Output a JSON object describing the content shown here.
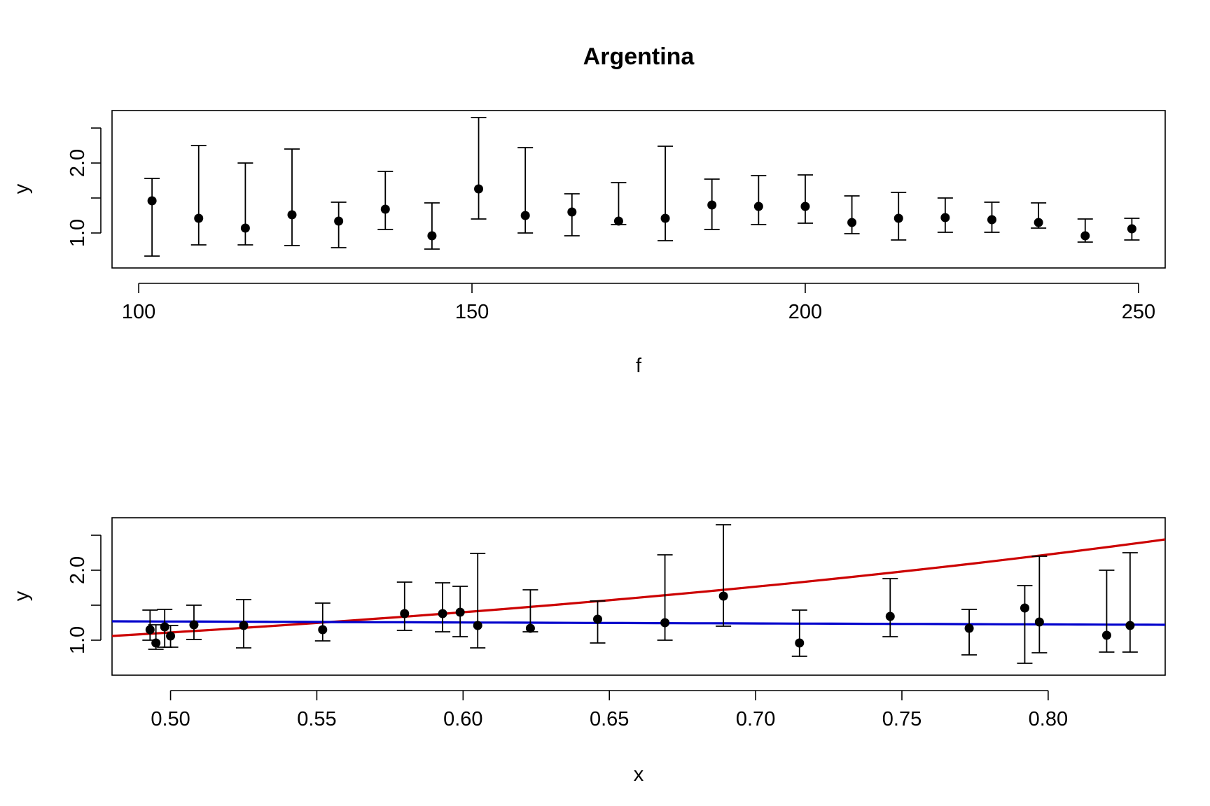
{
  "chart_data": [
    {
      "type": "scatter",
      "title": "Argentina",
      "xlabel": "f",
      "ylabel": "y",
      "xlim": [
        96,
        254
      ],
      "ylim": [
        0.5,
        2.75
      ],
      "xticks": [
        100,
        150,
        200,
        250
      ],
      "xtick_labels": [
        "100",
        "150",
        "200",
        "250"
      ],
      "yticks": [
        1.0,
        2.0
      ],
      "ytick_labels": [
        "1.0",
        "2.0"
      ],
      "grid": false,
      "colors": {
        "points": "#000000",
        "error_bars": "#000000"
      },
      "points": [
        {
          "x": 102,
          "y": 1.46,
          "lo": 0.67,
          "hi": 1.78
        },
        {
          "x": 109,
          "y": 1.21,
          "lo": 0.83,
          "hi": 2.25
        },
        {
          "x": 116,
          "y": 1.07,
          "lo": 0.83,
          "hi": 2.0
        },
        {
          "x": 123,
          "y": 1.26,
          "lo": 0.82,
          "hi": 2.2
        },
        {
          "x": 130,
          "y": 1.17,
          "lo": 0.79,
          "hi": 1.44
        },
        {
          "x": 137,
          "y": 1.34,
          "lo": 1.05,
          "hi": 1.88
        },
        {
          "x": 144,
          "y": 0.96,
          "lo": 0.77,
          "hi": 1.43
        },
        {
          "x": 151,
          "y": 1.63,
          "lo": 1.2,
          "hi": 2.65
        },
        {
          "x": 158,
          "y": 1.25,
          "lo": 1.0,
          "hi": 2.22
        },
        {
          "x": 165,
          "y": 1.3,
          "lo": 0.96,
          "hi": 1.56
        },
        {
          "x": 172,
          "y": 1.17,
          "lo": 1.12,
          "hi": 1.72
        },
        {
          "x": 179,
          "y": 1.21,
          "lo": 0.89,
          "hi": 2.24
        },
        {
          "x": 186,
          "y": 1.4,
          "lo": 1.05,
          "hi": 1.77
        },
        {
          "x": 193,
          "y": 1.38,
          "lo": 1.12,
          "hi": 1.82
        },
        {
          "x": 200,
          "y": 1.38,
          "lo": 1.14,
          "hi": 1.83
        },
        {
          "x": 207,
          "y": 1.15,
          "lo": 0.99,
          "hi": 1.53
        },
        {
          "x": 214,
          "y": 1.21,
          "lo": 0.9,
          "hi": 1.58
        },
        {
          "x": 221,
          "y": 1.22,
          "lo": 1.01,
          "hi": 1.5
        },
        {
          "x": 228,
          "y": 1.19,
          "lo": 1.01,
          "hi": 1.44
        },
        {
          "x": 235,
          "y": 1.15,
          "lo": 1.07,
          "hi": 1.43
        },
        {
          "x": 242,
          "y": 0.96,
          "lo": 0.87,
          "hi": 1.2
        },
        {
          "x": 249,
          "y": 1.06,
          "lo": 0.9,
          "hi": 1.21
        }
      ]
    },
    {
      "type": "scatter",
      "title": "",
      "xlabel": "x",
      "ylabel": "y",
      "xlim": [
        0.48,
        0.84
      ],
      "ylim": [
        0.5,
        2.75
      ],
      "xticks": [
        0.5,
        0.55,
        0.6,
        0.65,
        0.7,
        0.75,
        0.8
      ],
      "xtick_labels": [
        "0.50",
        "0.55",
        "0.60",
        "0.65",
        "0.70",
        "0.75",
        "0.80"
      ],
      "yticks": [
        1.0,
        2.0
      ],
      "ytick_labels": [
        "1.0",
        "2.0"
      ],
      "grid": false,
      "colors": {
        "points": "#000000",
        "error_bars": "#000000"
      },
      "points": [
        {
          "x": 0.493,
          "y": 1.15,
          "lo": 1.0,
          "hi": 1.43
        },
        {
          "x": 0.495,
          "y": 0.96,
          "lo": 0.87,
          "hi": 1.22
        },
        {
          "x": 0.498,
          "y": 1.19,
          "lo": 0.9,
          "hi": 1.44
        },
        {
          "x": 0.5,
          "y": 1.06,
          "lo": 0.9,
          "hi": 1.21
        },
        {
          "x": 0.508,
          "y": 1.22,
          "lo": 1.01,
          "hi": 1.5
        },
        {
          "x": 0.525,
          "y": 1.21,
          "lo": 0.89,
          "hi": 1.58
        },
        {
          "x": 0.552,
          "y": 1.15,
          "lo": 0.99,
          "hi": 1.53
        },
        {
          "x": 0.58,
          "y": 1.38,
          "lo": 1.14,
          "hi": 1.83
        },
        {
          "x": 0.593,
          "y": 1.38,
          "lo": 1.12,
          "hi": 1.82
        },
        {
          "x": 0.599,
          "y": 1.4,
          "lo": 1.05,
          "hi": 1.77
        },
        {
          "x": 0.605,
          "y": 1.21,
          "lo": 0.89,
          "hi": 2.24
        },
        {
          "x": 0.623,
          "y": 1.17,
          "lo": 1.12,
          "hi": 1.72
        },
        {
          "x": 0.646,
          "y": 1.3,
          "lo": 0.96,
          "hi": 1.56
        },
        {
          "x": 0.669,
          "y": 1.25,
          "lo": 1.0,
          "hi": 2.22
        },
        {
          "x": 0.689,
          "y": 1.63,
          "lo": 1.2,
          "hi": 2.65
        },
        {
          "x": 0.715,
          "y": 0.96,
          "lo": 0.77,
          "hi": 1.43
        },
        {
          "x": 0.746,
          "y": 1.34,
          "lo": 1.05,
          "hi": 1.88
        },
        {
          "x": 0.773,
          "y": 1.17,
          "lo": 0.79,
          "hi": 1.44
        },
        {
          "x": 0.792,
          "y": 1.46,
          "lo": 0.67,
          "hi": 1.78
        },
        {
          "x": 0.797,
          "y": 1.26,
          "lo": 0.82,
          "hi": 2.2
        },
        {
          "x": 0.82,
          "y": 1.07,
          "lo": 0.83,
          "hi": 2.0
        },
        {
          "x": 0.828,
          "y": 1.21,
          "lo": 0.83,
          "hi": 2.25
        }
      ],
      "lines": [
        {
          "color": "#cc0000",
          "shape": "exponential",
          "x": [
            0.48,
            0.84
          ],
          "y": [
            1.06,
            2.44
          ]
        },
        {
          "color": "#0000cc",
          "shape": "linear",
          "x": [
            0.48,
            0.84
          ],
          "y": [
            1.27,
            1.22
          ]
        }
      ]
    }
  ]
}
